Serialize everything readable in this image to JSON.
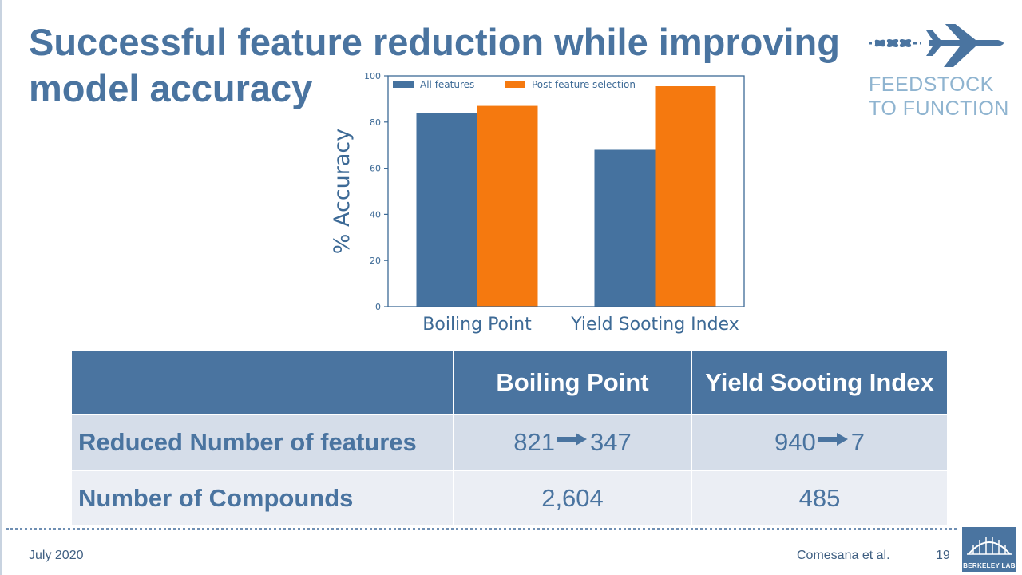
{
  "slide": {
    "title": "Successful feature reduction while improving model accuracy"
  },
  "logo": {
    "line1": "FEEDSTOCK",
    "line2": "TO FUNCTION"
  },
  "chart_data": {
    "type": "bar",
    "categories": [
      "Boiling Point",
      "Yield Sooting Index"
    ],
    "series": [
      {
        "name": "All features",
        "values": [
          84,
          68
        ]
      },
      {
        "name": "Post feature selection",
        "values": [
          87,
          95.5
        ]
      }
    ],
    "title": "",
    "xlabel": "",
    "ylabel": "% Accuracy",
    "ylim": [
      0,
      100
    ],
    "yticks": [
      0,
      20,
      40,
      60,
      80,
      100
    ],
    "legend": "top-left",
    "colors": [
      "#45729f",
      "#f5790f"
    ]
  },
  "table": {
    "headers": [
      "",
      "Boiling Point",
      "Yield Sooting Index"
    ],
    "rows": [
      {
        "label": "Reduced Number of features",
        "boiling": {
          "from": "821",
          "to": "347"
        },
        "yield": {
          "from": "940",
          "to": "7"
        }
      },
      {
        "label": "Number of Compounds",
        "boiling": "2,604",
        "yield": "485"
      }
    ]
  },
  "footer": {
    "date": "July 2020",
    "author": "Comesana et al.",
    "page": "19",
    "lab": "BERKELEY LAB"
  },
  "colors": {
    "brand": "#4a74a0",
    "orange": "#f5790f",
    "row1": "#d5dde9",
    "row2": "#ebeef4"
  }
}
